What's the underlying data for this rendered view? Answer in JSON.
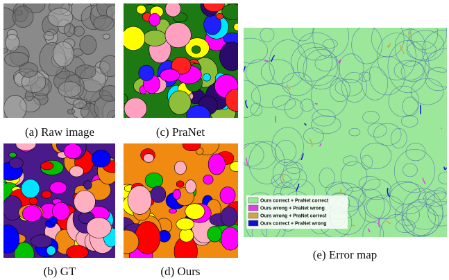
{
  "panels": [
    {
      "caption": "(a) Raw image"
    },
    {
      "caption": "(c) PraNet"
    },
    {
      "caption": "(b) GT"
    },
    {
      "caption": "(d) Ours"
    },
    {
      "caption": "(e) Error map"
    }
  ],
  "legend": {
    "items": [
      {
        "label": "Ours correct + PraNet correct"
      },
      {
        "label": "Ours wrong + PraNet wrong"
      },
      {
        "label": "Ours wrong + PraNet correct"
      },
      {
        "label": "Ours correct + PraNet wrong"
      }
    ]
  }
}
